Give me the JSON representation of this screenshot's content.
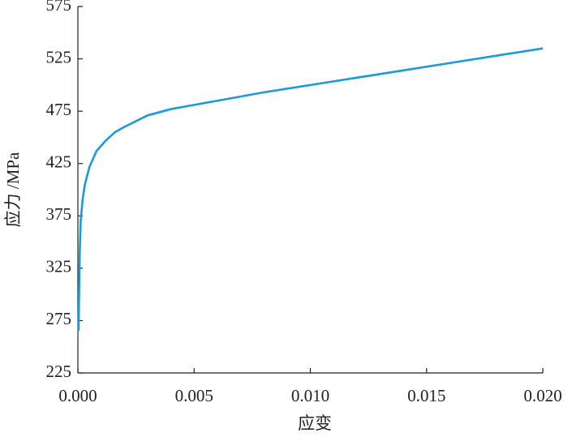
{
  "chart_data": {
    "type": "line",
    "x_label": "应变",
    "y_label": "应力 /MPa",
    "x": [
      3e-05,
      5e-05,
      8e-05,
      0.00012,
      0.0002,
      0.0003,
      0.0005,
      0.0008,
      0.0012,
      0.0016,
      0.002,
      0.003,
      0.004,
      0.005,
      0.006,
      0.008,
      0.01,
      0.012,
      0.014,
      0.016,
      0.018,
      0.02
    ],
    "values": [
      265,
      300,
      340,
      370,
      390,
      405,
      422,
      437,
      447,
      455,
      460,
      471,
      477,
      481,
      485,
      493,
      500,
      507,
      514,
      521,
      528,
      535
    ],
    "color": "#1a9bd7",
    "xlim": [
      0,
      0.02
    ],
    "xticks": [
      {
        "value": 0,
        "label": "0.000"
      },
      {
        "value": 0.005,
        "label": "0.005"
      },
      {
        "value": 0.01,
        "label": "0.010"
      },
      {
        "value": 0.015,
        "label": "0.015"
      },
      {
        "value": 0.02,
        "label": "0.020"
      }
    ],
    "ylim": [
      225,
      575
    ],
    "yticks": [
      225,
      275,
      325,
      375,
      425,
      475,
      525,
      575
    ]
  }
}
